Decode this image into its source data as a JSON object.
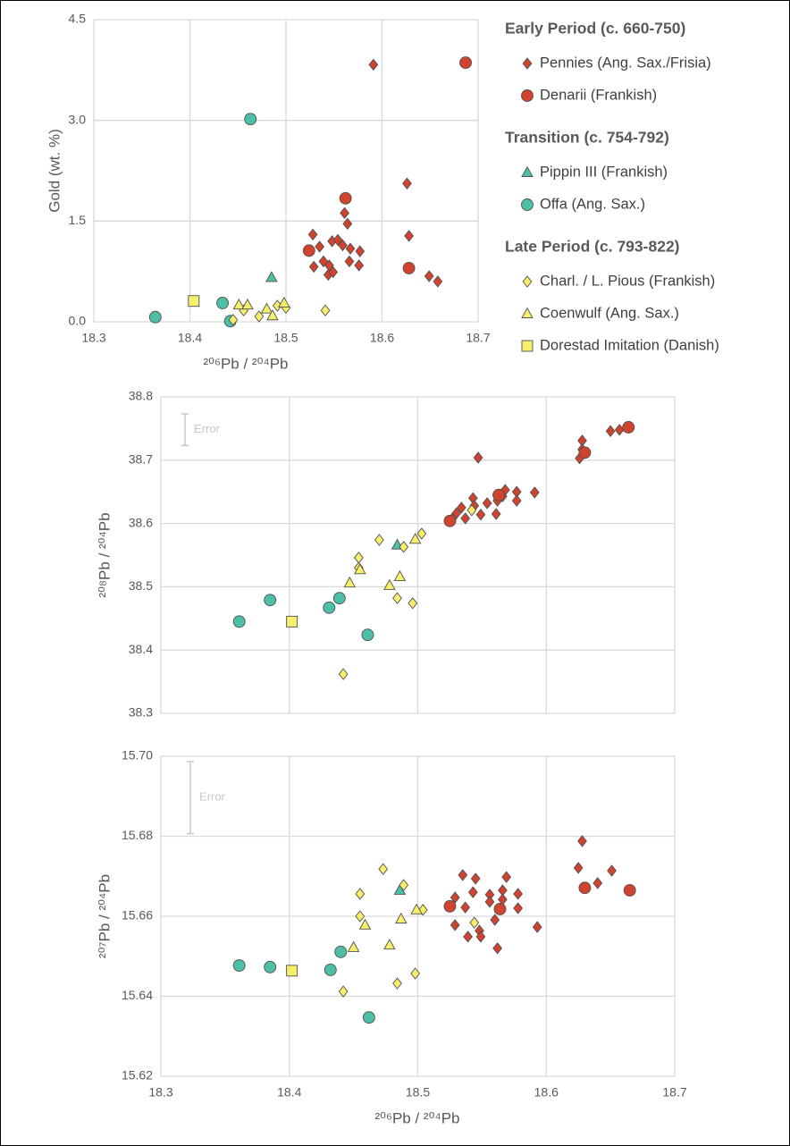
{
  "chart_data": [
    {
      "type": "scatter",
      "x_label": "²⁰⁶Pb / ²⁰⁴Pb",
      "y_label": "Gold (wt. %)",
      "xlim": [
        18.3,
        18.7
      ],
      "ylim": [
        0,
        4.5
      ],
      "xticks": [
        18.3,
        18.4,
        18.5,
        18.6,
        18.7
      ],
      "yticks": [
        {
          "value": 0,
          "label": "0.0"
        },
        1.5,
        {
          "value": 3,
          "label": "3.0"
        },
        4.5
      ],
      "grid": true,
      "groups": [
        {
          "title": "Early Period (c. 660-750)",
          "series": [
            {
              "name": "Pennies (Ang. Sax./Frisia)",
              "marker": "diamond",
              "color": "#d0432f",
              "x": [
                18.591,
                18.626,
                18.628,
                18.561,
                18.564,
                18.528,
                18.535,
                18.539,
                18.529,
                18.545,
                18.544,
                18.549,
                18.548,
                18.554,
                18.559,
                18.567,
                18.577,
                18.576,
                18.566,
                18.649,
                18.658
              ],
              "values": [
                3.83,
                2.06,
                1.28,
                1.62,
                1.46,
                1.3,
                1.12,
                0.9,
                0.82,
                0.84,
                0.7,
                0.74,
                1.2,
                1.22,
                1.14,
                1.09,
                1.05,
                0.84,
                0.9,
                0.68,
                0.6
              ]
            },
            {
              "name": "Denarii (Frankish)",
              "marker": "circle",
              "color": "#d0432f",
              "x": [
                18.687,
                18.562,
                18.524,
                18.628
              ],
              "values": [
                3.86,
                1.84,
                1.06,
                0.8
              ]
            }
          ]
        },
        {
          "title": "Transition (c. 754-792)",
          "series": [
            {
              "name": "Pippin III (Frankish)",
              "marker": "triangle",
              "color": "#4cbfa6",
              "x": [
                18.485
              ],
              "values": [
                0.66
              ]
            },
            {
              "name": "Offa (Ang. Sax.)",
              "marker": "circle",
              "color": "#4cbfa6",
              "x": [
                18.463,
                18.364,
                18.434,
                18.442
              ],
              "values": [
                3.02,
                0.07,
                0.28,
                0.01
              ]
            }
          ]
        },
        {
          "title": "Late Period (c. 793-822)",
          "series": [
            {
              "name": "Charl. / L. Pious (Frankish)",
              "marker": "diamond",
              "color": "#f7ee6b",
              "x": [
                18.541,
                18.472,
                18.445,
                18.456,
                18.5,
                18.491
              ],
              "values": [
                0.17,
                0.08,
                0.03,
                0.17,
                0.21,
                0.24
              ]
            },
            {
              "name": "Coenwulf (Ang. Sax.)",
              "marker": "triangle",
              "color": "#f7ee6b",
              "x": [
                18.451,
                18.46,
                18.48,
                18.486,
                18.498
              ],
              "values": [
                0.25,
                0.25,
                0.19,
                0.09,
                0.28
              ]
            },
            {
              "name": "Dorestad Imitation (Danish)",
              "marker": "square",
              "color": "#f7ee6b",
              "x": [
                18.404
              ],
              "values": [
                0.31
              ]
            }
          ]
        }
      ]
    },
    {
      "type": "scatter",
      "y_label": "²⁰⁸Pb / ²⁰⁴Pb",
      "xlim": [
        18.3,
        18.7
      ],
      "ylim": [
        38.3,
        38.8
      ],
      "xticks": [
        18.3,
        18.4,
        18.5,
        18.6,
        18.7
      ],
      "xtick_labels": false,
      "yticks": [
        38.3,
        38.4,
        38.5,
        38.6,
        38.7,
        38.8
      ],
      "grid": true,
      "annotation": {
        "text": "Error",
        "error": 0.05
      },
      "groups": [
        {
          "series": [
            {
              "x": [
                18.65,
                18.657,
                18.628,
                18.628,
                18.626,
                18.547,
                18.591,
                18.577,
                18.577,
                18.568,
                18.566,
                18.562,
                18.561,
                18.554,
                18.543,
                18.544,
                18.549,
                18.534,
                18.537,
                18.53,
                18.527
              ],
              "values": [
                38.746,
                38.748,
                38.731,
                38.717,
                38.703,
                38.704,
                38.649,
                38.65,
                38.636,
                38.653,
                38.643,
                38.636,
                38.615,
                38.632,
                38.64,
                38.628,
                38.614,
                38.625,
                38.608,
                38.616,
                38.608
              ]
            },
            {
              "x": [
                18.664,
                18.63,
                18.563,
                18.525
              ],
              "values": [
                38.752,
                38.712,
                38.645,
                38.604
              ]
            }
          ]
        },
        {
          "series": [
            {
              "x": [
                18.484
              ],
              "values": [
                38.566
              ]
            },
            {
              "x": [
                18.361,
                18.385,
                18.439,
                18.431,
                18.461
              ],
              "values": [
                38.445,
                38.479,
                38.482,
                38.467,
                38.424
              ]
            }
          ]
        },
        {
          "series": [
            {
              "x": [
                18.47,
                18.489,
                18.503,
                18.454,
                18.454,
                18.484,
                18.496,
                18.442,
                18.542
              ],
              "values": [
                38.574,
                38.563,
                38.584,
                38.546,
                38.53,
                38.482,
                38.474,
                38.362,
                38.621
              ]
            },
            {
              "x": [
                18.447,
                18.455,
                18.486,
                18.478,
                18.498
              ],
              "values": [
                38.506,
                38.527,
                38.516,
                38.502,
                38.575
              ]
            },
            {
              "x": [
                18.402
              ],
              "values": [
                38.445
              ]
            }
          ]
        }
      ]
    },
    {
      "type": "scatter",
      "x_label": "²⁰⁶Pb / ²⁰⁴Pb",
      "y_label": "²⁰⁷Pb / ²⁰⁴Pb",
      "xlim": [
        18.3,
        18.7
      ],
      "ylim": [
        15.62,
        15.7
      ],
      "xticks": [
        18.3,
        18.4,
        18.5,
        18.6,
        18.7
      ],
      "yticks": [
        15.62,
        15.64,
        15.66,
        15.68,
        {
          "value": 15.7,
          "label": "15.70"
        }
      ],
      "grid": true,
      "annotation": {
        "text": "Error",
        "error": 0.018
      },
      "groups": [
        {
          "series": [
            {
              "x": [
                18.628,
                18.625,
                18.651,
                18.64,
                18.535,
                18.545,
                18.569,
                18.578,
                18.578,
                18.566,
                18.556,
                18.556,
                18.543,
                18.529,
                18.537,
                18.529,
                18.539,
                18.548,
                18.549,
                18.56,
                18.562,
                18.593,
                18.566
              ],
              "values": [
                15.6788,
                15.6721,
                15.6714,
                15.6683,
                15.6703,
                15.6694,
                15.6698,
                15.6656,
                15.662,
                15.6665,
                15.6654,
                15.6636,
                15.666,
                15.6647,
                15.6622,
                15.6578,
                15.6549,
                15.6564,
                15.6549,
                15.6591,
                15.652,
                15.6573,
                15.6642
              ]
            },
            {
              "x": [
                18.63,
                18.665,
                18.525,
                18.564
              ],
              "values": [
                15.6671,
                15.6665,
                15.6625,
                15.6618
              ]
            }
          ]
        },
        {
          "series": [
            {
              "x": [
                18.486
              ],
              "values": [
                15.6665
              ]
            },
            {
              "x": [
                18.361,
                18.385,
                18.44,
                18.432,
                18.462
              ],
              "values": [
                15.6477,
                15.6473,
                15.6511,
                15.6466,
                15.6347
              ]
            }
          ]
        },
        {
          "series": [
            {
              "x": [
                18.473,
                18.489,
                18.455,
                18.455,
                18.504,
                18.484,
                18.498,
                18.442,
                18.544
              ],
              "values": [
                15.6718,
                15.6678,
                15.6656,
                15.66,
                15.6616,
                15.6432,
                15.6457,
                15.6412,
                15.6584
              ]
            },
            {
              "x": [
                18.45,
                18.459,
                18.487,
                18.478,
                18.499
              ],
              "values": [
                15.6522,
                15.6578,
                15.6593,
                15.6528,
                15.6616
              ]
            },
            {
              "x": [
                18.402
              ],
              "values": [
                15.6464
              ]
            }
          ]
        }
      ]
    }
  ]
}
